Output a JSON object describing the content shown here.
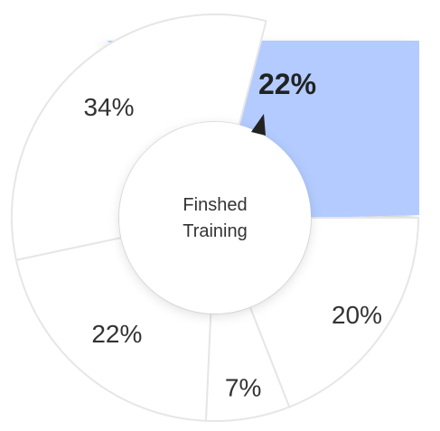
{
  "chart_data": {
    "type": "pie",
    "variant": "donut",
    "center_label_lines": [
      "Finshed",
      "Training"
    ],
    "slices": [
      {
        "label": "22%",
        "value": 22,
        "highlighted": true
      },
      {
        "label": "20%",
        "value": 20,
        "highlighted": false
      },
      {
        "label": "7%",
        "value": 7,
        "highlighted": false
      },
      {
        "label": "22%",
        "value": 22,
        "highlighted": false
      },
      {
        "label": "34%",
        "value": 34,
        "highlighted": false
      }
    ],
    "colors": {
      "highlight_fill": "#b3cbff",
      "slice_fill": "#ffffff",
      "slice_stroke": "#e6e6e6",
      "pointer": "#222222"
    }
  }
}
